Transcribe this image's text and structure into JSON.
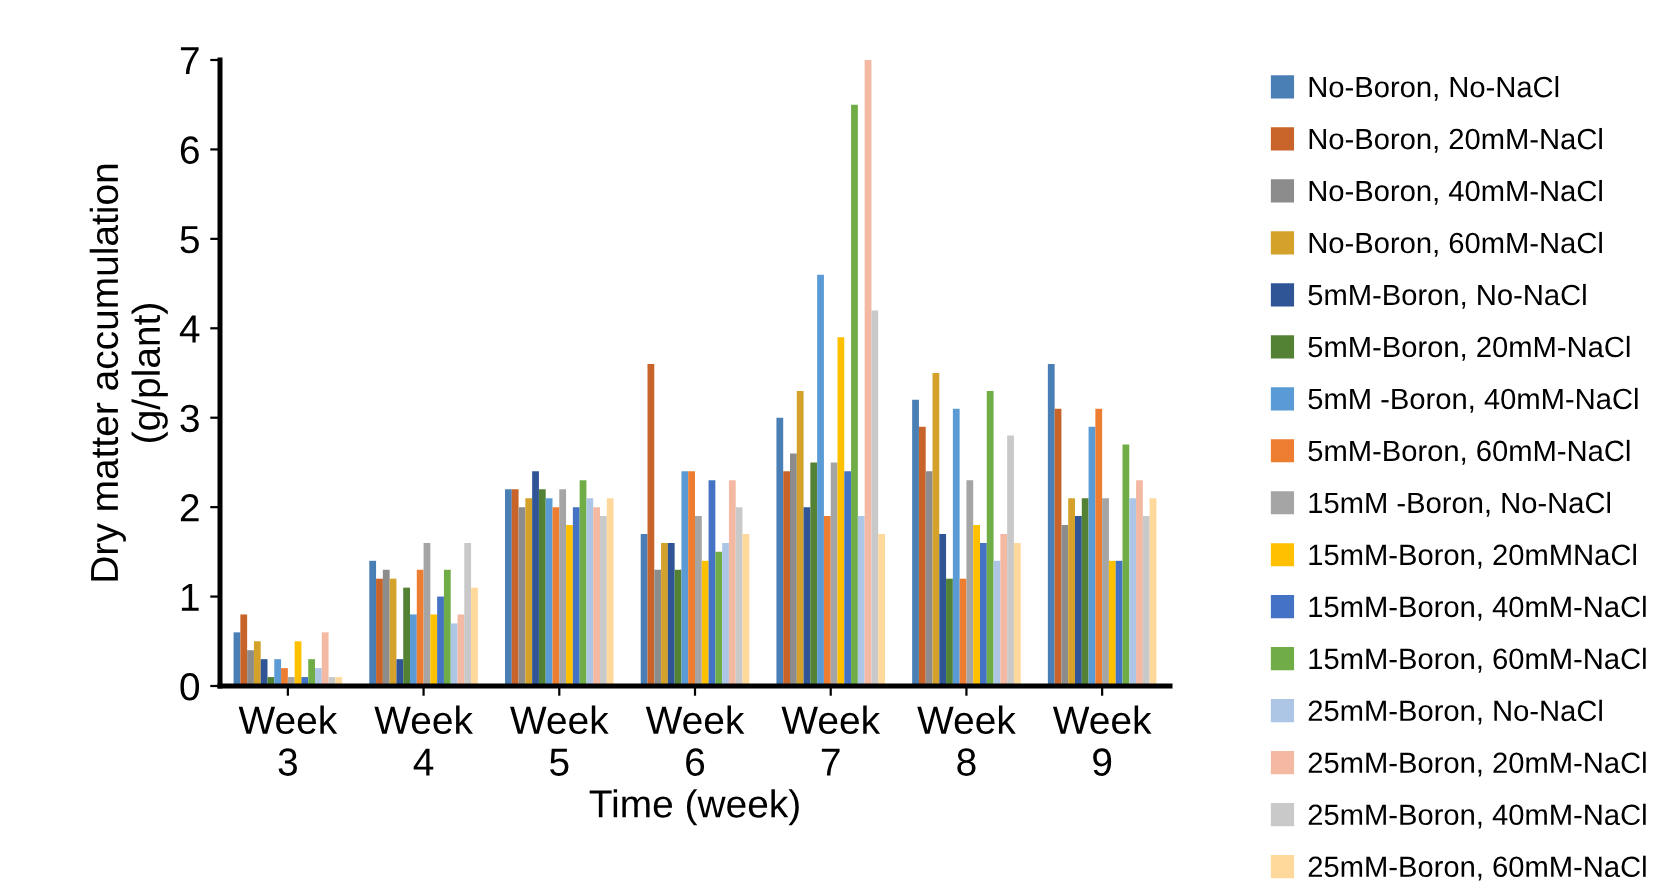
{
  "chart_data": {
    "type": "bar",
    "xlabel": "Time (week)",
    "ylabel": "Dry matter accumulation\n(g/plant)",
    "categories": [
      "Week\n3",
      "Week\n4",
      "Week\n5",
      "Week\n6",
      "Week\n7",
      "Week\n8",
      "Week\n9"
    ],
    "ylim": [
      0,
      7
    ],
    "yticks": [
      0,
      1,
      2,
      3,
      4,
      5,
      6,
      7
    ],
    "grid": false,
    "legend": "right",
    "series": [
      {
        "name": "No-Boron, No-NaCl",
        "color": "#4a7fb5",
        "values": [
          0.6,
          1.4,
          2.2,
          1.7,
          3.0,
          3.2,
          3.6
        ]
      },
      {
        "name": "No-Boron, 20mM-NaCl",
        "color": "#c8642a",
        "values": [
          0.8,
          1.2,
          2.2,
          3.6,
          2.4,
          2.9,
          3.1
        ]
      },
      {
        "name": "No-Boron, 40mM-NaCl",
        "color": "#8c8c8c",
        "values": [
          0.4,
          1.3,
          2.0,
          1.3,
          2.6,
          2.4,
          1.8
        ]
      },
      {
        "name": "No-Boron, 60mM-NaCl",
        "color": "#d4a22a",
        "values": [
          0.5,
          1.2,
          2.1,
          1.6,
          3.3,
          3.5,
          2.1
        ]
      },
      {
        "name": "5mM-Boron, No-NaCl",
        "color": "#2f5597",
        "values": [
          0.3,
          0.3,
          2.4,
          1.6,
          2.0,
          1.7,
          1.9
        ]
      },
      {
        "name": "5mM-Boron, 20mM-NaCl",
        "color": "#548235",
        "values": [
          0.1,
          1.1,
          2.2,
          1.3,
          2.5,
          1.2,
          2.1
        ]
      },
      {
        "name": "5mM -Boron, 40mM-NaCl",
        "color": "#5b9bd5",
        "values": [
          0.3,
          0.8,
          2.1,
          2.4,
          4.6,
          3.1,
          2.9
        ]
      },
      {
        "name": "5mM-Boron, 60mM-NaCl",
        "color": "#ed7d31",
        "values": [
          0.2,
          1.3,
          2.0,
          2.4,
          1.9,
          1.2,
          3.1
        ]
      },
      {
        "name": "15mM -Boron, No-NaCl",
        "color": "#a5a5a5",
        "values": [
          0.1,
          1.6,
          2.2,
          1.9,
          2.5,
          2.3,
          2.1
        ]
      },
      {
        "name": "15mM-Boron, 20mMNaCl",
        "color": "#ffc000",
        "values": [
          0.5,
          0.8,
          1.8,
          1.4,
          3.9,
          1.8,
          1.4
        ]
      },
      {
        "name": "15mM-Boron, 40mM-NaCl",
        "color": "#4472c4",
        "values": [
          0.1,
          1.0,
          2.0,
          2.3,
          2.4,
          1.6,
          1.4
        ]
      },
      {
        "name": "15mM-Boron, 60mM-NaCl",
        "color": "#70ad47",
        "values": [
          0.3,
          1.3,
          2.3,
          1.5,
          6.5,
          3.3,
          2.7
        ]
      },
      {
        "name": "25mM-Boron, No-NaCl",
        "color": "#adc6e6",
        "values": [
          0.2,
          0.7,
          2.1,
          1.6,
          1.9,
          1.4,
          2.1
        ]
      },
      {
        "name": "25mM-Boron, 20mM-NaCl",
        "color": "#f4b9a3",
        "values": [
          0.6,
          0.8,
          2.0,
          2.3,
          7.0,
          1.7,
          2.3
        ]
      },
      {
        "name": "25mM-Boron, 40mM-NaCl",
        "color": "#c9c9c9",
        "values": [
          0.1,
          1.6,
          1.9,
          2.0,
          4.2,
          2.8,
          1.9
        ]
      },
      {
        "name": "25mM-Boron, 60mM-NaCl",
        "color": "#ffd99b",
        "values": [
          0.1,
          1.1,
          2.1,
          1.7,
          1.7,
          1.6,
          2.1
        ]
      }
    ]
  }
}
